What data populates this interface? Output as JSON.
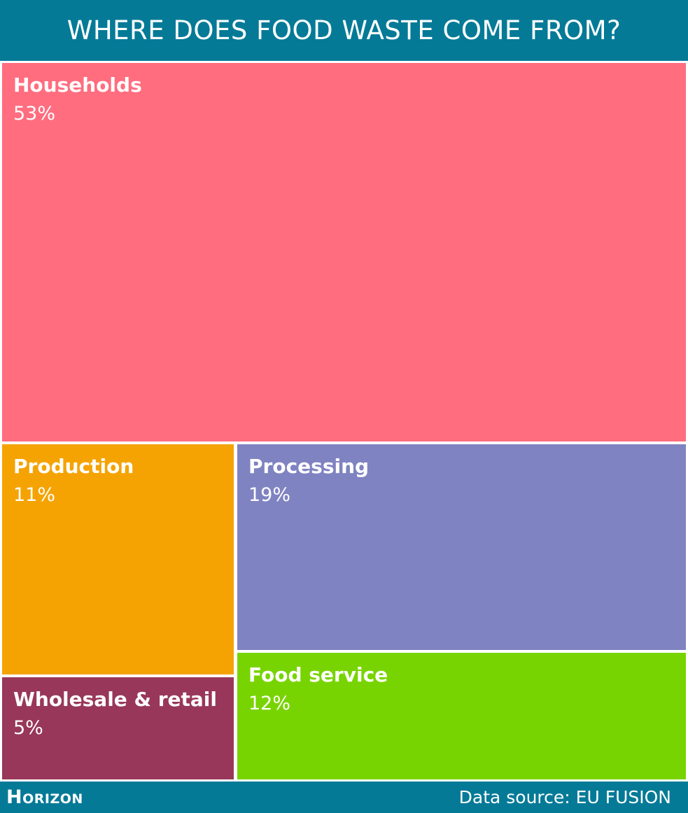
{
  "chart_data": {
    "type": "treemap",
    "title": "WHERE DOES FOOD WASTE COME FROM?",
    "unit": "%",
    "categories": [
      "Households",
      "Production",
      "Processing",
      "Wholesale & retail",
      "Food service"
    ],
    "values": [
      53,
      11,
      19,
      5,
      12
    ],
    "value_labels": [
      "53%",
      "11%",
      "19%",
      "5%",
      "12%"
    ],
    "colors": [
      "#ff6d7f",
      "#f5a302",
      "#7f83c1",
      "#983759",
      "#78d400"
    ],
    "legend": false,
    "grid": false
  },
  "footer": {
    "logo": "Horizon",
    "source": "Data source: EU FUSION"
  },
  "colors": {
    "background": "#047a97",
    "text": "#ffffff",
    "divider": "#ffffff"
  }
}
